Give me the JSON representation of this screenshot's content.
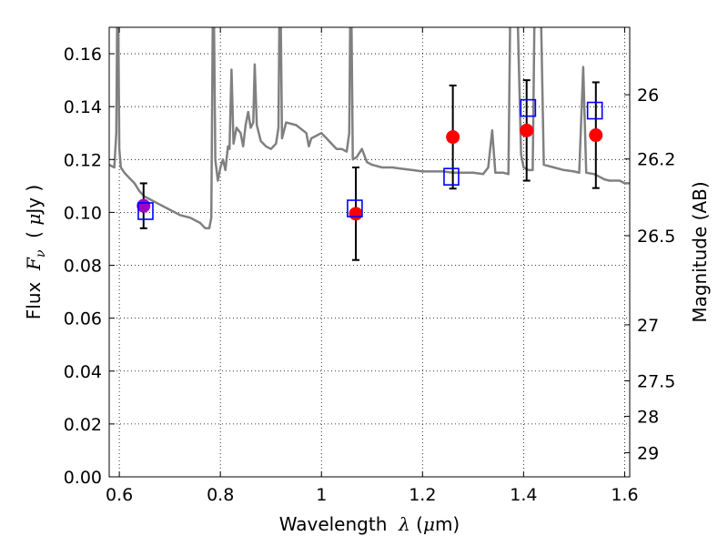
{
  "chart_data": {
    "type": "scatter",
    "xlabel": {
      "prefix": "Wavelength  ",
      "symbol": "λ",
      "suffix": " (",
      "unit_symbol": "μ",
      "unit": "m)"
    },
    "ylabel": {
      "prefix": "Flux  ",
      "symbol": "F",
      "subscript": "ν",
      "suffix": "  ( ",
      "unit_symbol": "μ",
      "unit": "Jy )"
    },
    "ylabel_right": "Magnitude (AB)",
    "xlim": [
      0.58,
      1.61
    ],
    "ylim": [
      0.0,
      0.17
    ],
    "x_ticks": [
      0.6,
      0.8,
      1.0,
      1.2,
      1.4,
      1.6
    ],
    "x_tick_labels": [
      "0.6",
      "0.8",
      "1",
      "1.2",
      "1.4",
      "1.6"
    ],
    "y_ticks": [
      0.0,
      0.02,
      0.04,
      0.06,
      0.08,
      0.1,
      0.12,
      0.14,
      0.16
    ],
    "y_tick_labels": [
      "0.00",
      "0.02",
      "0.04",
      "0.06",
      "0.08",
      "0.10",
      "0.12",
      "0.14",
      "0.16"
    ],
    "right_ticks": [
      {
        "label": "26",
        "flux": 0.1445
      },
      {
        "label": "26.2",
        "flux": 0.1202
      },
      {
        "label": "26.5",
        "flux": 0.0912
      },
      {
        "label": "27",
        "flux": 0.0575
      },
      {
        "label": "27.5",
        "flux": 0.0363
      },
      {
        "label": "28",
        "flux": 0.0229
      },
      {
        "label": "29",
        "flux": 0.0091
      }
    ],
    "grid": true,
    "colors": {
      "model": "#808080",
      "observed": "#ff0000",
      "observed_first": "#a000c8",
      "model_photometry": "#0000ff",
      "errorbar": "#000000"
    },
    "observed": [
      {
        "x": 0.648,
        "y": 0.1025,
        "yerr": 0.0085,
        "highlight": true
      },
      {
        "x": 1.068,
        "y": 0.0995,
        "yerr": 0.0175,
        "highlight": false
      },
      {
        "x": 1.26,
        "y": 0.1285,
        "yerr": 0.0195,
        "highlight": false
      },
      {
        "x": 1.406,
        "y": 0.131,
        "yerr": 0.019,
        "highlight": false
      },
      {
        "x": 1.543,
        "y": 0.1292,
        "yerr": 0.02,
        "highlight": false
      }
    ],
    "model_photometry": [
      {
        "x": 0.652,
        "y": 0.1005
      },
      {
        "x": 1.066,
        "y": 0.1015
      },
      {
        "x": 1.257,
        "y": 0.1135
      },
      {
        "x": 1.409,
        "y": 0.1395
      },
      {
        "x": 1.541,
        "y": 0.1385
      }
    ],
    "model_spectrum": [
      [
        0.58,
        0.118
      ],
      [
        0.59,
        0.117
      ],
      [
        0.594,
        0.13
      ],
      [
        0.597,
        0.2
      ],
      [
        0.6,
        0.124
      ],
      [
        0.603,
        0.117
      ],
      [
        0.61,
        0.115
      ],
      [
        0.62,
        0.113
      ],
      [
        0.63,
        0.111
      ],
      [
        0.64,
        0.108
      ],
      [
        0.65,
        0.106
      ],
      [
        0.66,
        0.105
      ],
      [
        0.67,
        0.104
      ],
      [
        0.68,
        0.103
      ],
      [
        0.69,
        0.102
      ],
      [
        0.7,
        0.101
      ],
      [
        0.71,
        0.1
      ],
      [
        0.72,
        0.099
      ],
      [
        0.73,
        0.0985
      ],
      [
        0.74,
        0.098
      ],
      [
        0.75,
        0.097
      ],
      [
        0.76,
        0.096
      ],
      [
        0.77,
        0.094
      ],
      [
        0.778,
        0.094
      ],
      [
        0.782,
        0.098
      ],
      [
        0.786,
        0.2
      ],
      [
        0.79,
        0.12
      ],
      [
        0.795,
        0.112
      ],
      [
        0.8,
        0.117
      ],
      [
        0.805,
        0.12
      ],
      [
        0.81,
        0.116
      ],
      [
        0.815,
        0.125
      ],
      [
        0.818,
        0.124
      ],
      [
        0.822,
        0.154
      ],
      [
        0.826,
        0.126
      ],
      [
        0.832,
        0.132
      ],
      [
        0.84,
        0.13
      ],
      [
        0.845,
        0.125
      ],
      [
        0.85,
        0.133
      ],
      [
        0.855,
        0.138
      ],
      [
        0.86,
        0.132
      ],
      [
        0.865,
        0.134
      ],
      [
        0.868,
        0.156
      ],
      [
        0.872,
        0.133
      ],
      [
        0.88,
        0.127
      ],
      [
        0.89,
        0.125
      ],
      [
        0.9,
        0.124
      ],
      [
        0.91,
        0.126
      ],
      [
        0.915,
        0.132
      ],
      [
        0.918,
        0.2
      ],
      [
        0.922,
        0.128
      ],
      [
        0.93,
        0.134
      ],
      [
        0.95,
        0.133
      ],
      [
        0.97,
        0.13
      ],
      [
        0.975,
        0.125
      ],
      [
        0.98,
        0.128
      ],
      [
        0.99,
        0.129
      ],
      [
        1.0,
        0.13
      ],
      [
        1.01,
        0.128
      ],
      [
        1.02,
        0.126
      ],
      [
        1.03,
        0.124
      ],
      [
        1.04,
        0.124
      ],
      [
        1.05,
        0.123
      ],
      [
        1.055,
        0.13
      ],
      [
        1.058,
        0.2
      ],
      [
        1.062,
        0.12
      ],
      [
        1.07,
        0.121
      ],
      [
        1.08,
        0.124
      ],
      [
        1.09,
        0.119
      ],
      [
        1.1,
        0.118
      ],
      [
        1.12,
        0.117
      ],
      [
        1.14,
        0.117
      ],
      [
        1.16,
        0.1165
      ],
      [
        1.18,
        0.116
      ],
      [
        1.2,
        0.1155
      ],
      [
        1.22,
        0.1155
      ],
      [
        1.24,
        0.1155
      ],
      [
        1.26,
        0.115
      ],
      [
        1.28,
        0.115
      ],
      [
        1.3,
        0.115
      ],
      [
        1.32,
        0.1145
      ],
      [
        1.33,
        0.117
      ],
      [
        1.338,
        0.131
      ],
      [
        1.344,
        0.115
      ],
      [
        1.36,
        0.115
      ],
      [
        1.37,
        0.1145
      ],
      [
        1.375,
        0.2
      ],
      [
        1.385,
        0.2
      ],
      [
        1.395,
        0.122
      ],
      [
        1.4,
        0.117
      ],
      [
        1.41,
        0.116
      ],
      [
        1.418,
        0.116
      ],
      [
        1.423,
        0.2
      ],
      [
        1.432,
        0.2
      ],
      [
        1.44,
        0.118
      ],
      [
        1.46,
        0.117
      ],
      [
        1.48,
        0.116
      ],
      [
        1.5,
        0.1155
      ],
      [
        1.51,
        0.115
      ],
      [
        1.518,
        0.155
      ],
      [
        1.524,
        0.115
      ],
      [
        1.54,
        0.1145
      ],
      [
        1.55,
        0.1135
      ],
      [
        1.56,
        0.1125
      ],
      [
        1.57,
        0.112
      ],
      [
        1.58,
        0.112
      ],
      [
        1.59,
        0.112
      ],
      [
        1.6,
        0.111
      ],
      [
        1.61,
        0.111
      ]
    ]
  }
}
